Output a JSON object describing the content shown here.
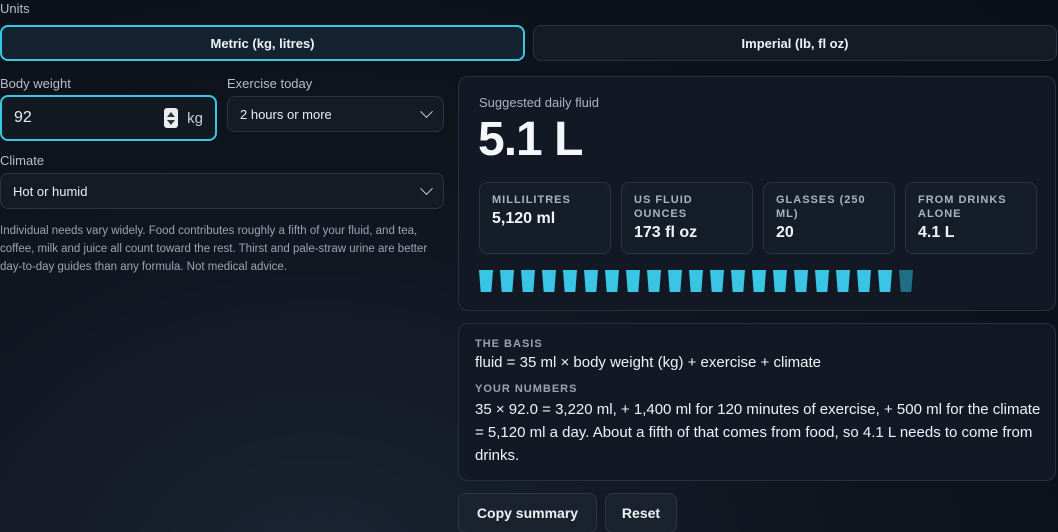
{
  "units": {
    "label": "Units",
    "options": [
      "Metric (kg, litres)",
      "Imperial (lb, fl oz)"
    ],
    "selected": "Metric (kg, litres)"
  },
  "body_weight": {
    "label": "Body weight",
    "value": "92",
    "unit": "kg"
  },
  "exercise": {
    "label": "Exercise today",
    "selected": "2 hours or more"
  },
  "climate": {
    "label": "Climate",
    "selected": "Hot or humid"
  },
  "note": "Individual needs vary widely. Food contributes roughly a fifth of your fluid, and tea, coffee, milk and juice all count toward the rest. Thirst and pale-straw urine are better day-to-day guides than any formula. Not medical advice.",
  "result": {
    "label": "Suggested daily fluid",
    "value": "5.1 L",
    "stats": [
      {
        "key": "MILLILITRES",
        "value": "5,120 ml"
      },
      {
        "key": "US FLUID OUNCES",
        "value": "173 fl oz"
      },
      {
        "key": "GLASSES (250 ML)",
        "value": "20"
      },
      {
        "key": "FROM DRINKS ALONE",
        "value": "4.1 L"
      }
    ],
    "glasses_full": 20,
    "glasses_partial": 1,
    "colors": {
      "accent": "#38c6e4",
      "partial": "#1f6f84"
    }
  },
  "basis": {
    "title": "THE BASIS",
    "formula": "fluid = 35 ml × body weight (kg) + exercise + climate",
    "numbers_title": "YOUR NUMBERS",
    "numbers": "35 × 92.0 = 3,220 ml, + 1,400 ml for 120 minutes of exercise, + 500 ml for the climate = 5,120 ml a day. About a fifth of that comes from food, so 4.1 L needs to come from drinks."
  },
  "actions": {
    "copy": "Copy summary",
    "reset": "Reset"
  }
}
